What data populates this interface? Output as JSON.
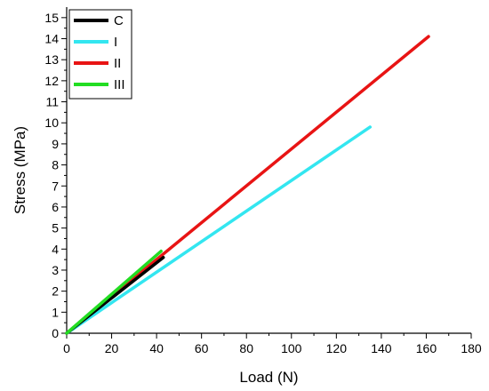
{
  "chart_data": {
    "type": "line",
    "title": "",
    "xlabel": "Load (N)",
    "ylabel": "Stress (MPa)",
    "xlim": [
      0,
      180
    ],
    "ylim": [
      0,
      15.5
    ],
    "x_ticks": [
      0,
      20,
      40,
      60,
      80,
      100,
      120,
      140,
      160,
      180
    ],
    "y_ticks": [
      0,
      1,
      2,
      3,
      4,
      5,
      6,
      7,
      8,
      9,
      10,
      11,
      12,
      13,
      14,
      15
    ],
    "grid": false,
    "legend_position": "top-left",
    "series": [
      {
        "name": "C",
        "color": "#000000",
        "points": [
          [
            0,
            0
          ],
          [
            43,
            3.6
          ]
        ]
      },
      {
        "name": "I",
        "color": "#33e6f0",
        "points": [
          [
            0,
            0
          ],
          [
            135,
            9.8
          ]
        ]
      },
      {
        "name": "II",
        "color": "#e81414",
        "points": [
          [
            0,
            0
          ],
          [
            161,
            14.1
          ]
        ]
      },
      {
        "name": "III",
        "color": "#22dd22",
        "points": [
          [
            0,
            0
          ],
          [
            42,
            3.9
          ]
        ]
      }
    ]
  }
}
